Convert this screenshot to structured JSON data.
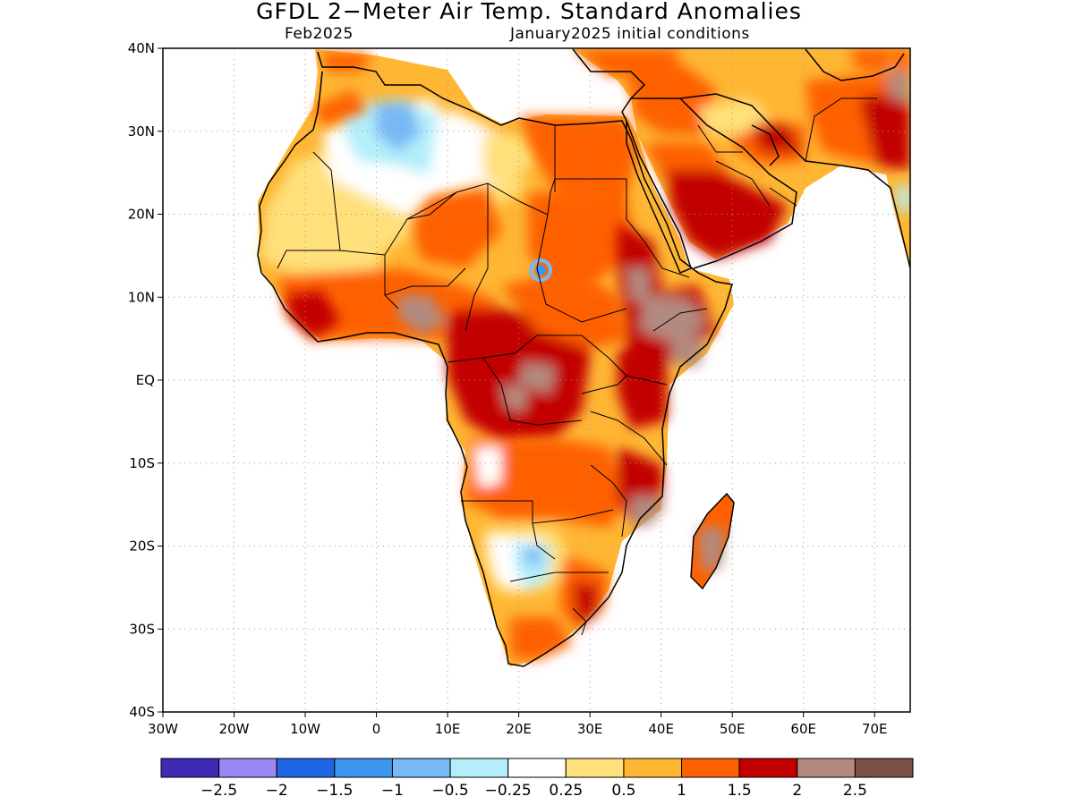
{
  "title": "GFDL 2−Meter Air Temp. Standard Anomalies",
  "subtitle_left": "Feb2025",
  "subtitle_right": "January2025 initial conditions",
  "map": {
    "lon_range": [
      -30,
      75
    ],
    "lat_range": [
      -40,
      40
    ],
    "lat_ticks": [
      {
        "value": 40,
        "label": "40N"
      },
      {
        "value": 30,
        "label": "30N"
      },
      {
        "value": 20,
        "label": "20N"
      },
      {
        "value": 10,
        "label": "10N"
      },
      {
        "value": 0,
        "label": "EQ"
      },
      {
        "value": -10,
        "label": "10S"
      },
      {
        "value": -20,
        "label": "20S"
      },
      {
        "value": -30,
        "label": "30S"
      },
      {
        "value": -40,
        "label": "40S"
      }
    ],
    "lon_ticks": [
      {
        "value": -30,
        "label": "30W"
      },
      {
        "value": -20,
        "label": "20W"
      },
      {
        "value": -10,
        "label": "10W"
      },
      {
        "value": 0,
        "label": "0"
      },
      {
        "value": 10,
        "label": "10E"
      },
      {
        "value": 20,
        "label": "20E"
      },
      {
        "value": 30,
        "label": "30E"
      },
      {
        "value": 40,
        "label": "40E"
      },
      {
        "value": 50,
        "label": "50E"
      },
      {
        "value": 60,
        "label": "60E"
      },
      {
        "value": 70,
        "label": "70E"
      }
    ],
    "grid": true,
    "land_outline_color": "#000000"
  },
  "colorbar": {
    "colors": [
      "#3d2bb5",
      "#9b87f2",
      "#1f66e6",
      "#3c96f0",
      "#78b8f5",
      "#b3eefa",
      "#ffffff",
      "#ffe07a",
      "#ffb633",
      "#fe6000",
      "#c20000",
      "#b38a7f",
      "#7a4f44"
    ],
    "labels": [
      "−2.5",
      "−2",
      "−1.5",
      "−1",
      "−0.5",
      "−0.25",
      "0.25",
      "0.5",
      "1",
      "1.5",
      "2",
      "2.5"
    ]
  }
}
